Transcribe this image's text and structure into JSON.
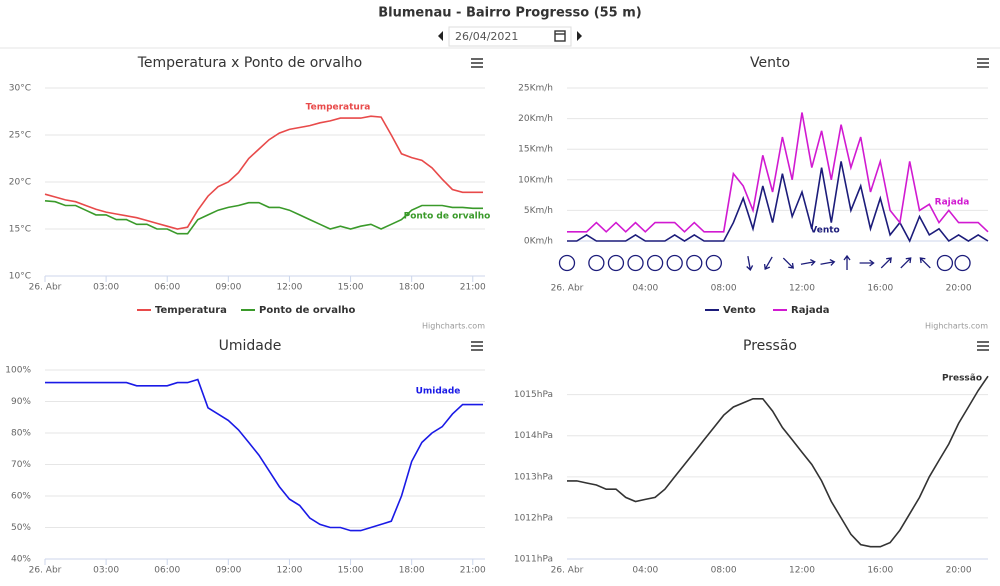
{
  "header": {
    "title": "Blumenau - Bairro Progresso (55 m)",
    "date": "26/04/2021"
  },
  "chart_data": [
    {
      "type": "line",
      "title": "Temperatura x Ponto de orvalho",
      "credits": "Highcharts.com",
      "legend": true,
      "xlim": [
        0,
        21.6
      ],
      "ylim": [
        10,
        30
      ],
      "xticks": [
        {
          "value": 0,
          "label": "26. Abr"
        },
        {
          "value": 3,
          "label": "03:00"
        },
        {
          "value": 6,
          "label": "06:00"
        },
        {
          "value": 9,
          "label": "09:00"
        },
        {
          "value": 12,
          "label": "12:00"
        },
        {
          "value": 15,
          "label": "15:00"
        },
        {
          "value": 18,
          "label": "18:00"
        },
        {
          "value": 21,
          "label": "21:00"
        }
      ],
      "yticks": [
        {
          "value": 10,
          "label": "10°C"
        },
        {
          "value": 15,
          "label": "15°C"
        },
        {
          "value": 20,
          "label": "20°C"
        },
        {
          "value": 25,
          "label": "25°C"
        },
        {
          "value": 30,
          "label": "30°C"
        }
      ],
      "x": [
        0,
        0.5,
        1,
        1.5,
        2,
        2.5,
        3,
        3.5,
        4,
        4.5,
        5,
        5.5,
        6,
        6.5,
        7,
        7.5,
        8,
        8.5,
        9,
        9.5,
        10,
        10.5,
        11,
        11.5,
        12,
        12.5,
        13,
        13.5,
        14,
        14.5,
        15,
        15.5,
        16,
        16.5,
        17,
        17.5,
        18,
        18.5,
        19,
        19.5,
        20,
        20.5,
        21,
        21.5
      ],
      "series": [
        {
          "name": "Temperatura",
          "color": "#e84a4a",
          "values": [
            18.7,
            18.4,
            18.1,
            17.9,
            17.5,
            17.1,
            16.8,
            16.6,
            16.4,
            16.2,
            15.9,
            15.6,
            15.3,
            15.0,
            15.2,
            17,
            18.5,
            19.5,
            20,
            21,
            22.5,
            23.5,
            24.5,
            25.2,
            25.6,
            25.8,
            26,
            26.3,
            26.5,
            26.8,
            26.8,
            26.8,
            27,
            26.9,
            25,
            23,
            22.6,
            22.3,
            21.5,
            20.3,
            19.2,
            18.9,
            18.9,
            18.9
          ]
        },
        {
          "name": "Ponto de orvalho",
          "color": "#3a9a2a",
          "values": [
            18,
            17.9,
            17.5,
            17.5,
            17,
            16.5,
            16.5,
            16,
            16,
            15.5,
            15.5,
            15,
            15,
            14.5,
            14.5,
            16,
            16.5,
            17,
            17.3,
            17.5,
            17.8,
            17.8,
            17.3,
            17.3,
            17,
            16.5,
            16,
            15.5,
            15,
            15.3,
            15,
            15.3,
            15.5,
            15,
            15.5,
            16,
            17,
            17.5,
            17.5,
            17.5,
            17.3,
            17.3,
            17.2,
            17.2
          ]
        }
      ]
    },
    {
      "type": "line",
      "title": "Vento",
      "credits": "Highcharts.com",
      "legend": true,
      "xlim": [
        0,
        21.5
      ],
      "ylim": [
        0,
        25
      ],
      "xticks": [
        {
          "value": 0,
          "label": "26. Abr"
        },
        {
          "value": 4,
          "label": "04:00"
        },
        {
          "value": 8,
          "label": "08:00"
        },
        {
          "value": 12,
          "label": "12:00"
        },
        {
          "value": 16,
          "label": "16:00"
        },
        {
          "value": 20,
          "label": "20:00"
        }
      ],
      "yticks": [
        {
          "value": 0,
          "label": "0Km/h"
        },
        {
          "value": 5,
          "label": "5Km/h"
        },
        {
          "value": 10,
          "label": "10Km/h"
        },
        {
          "value": 15,
          "label": "15Km/h"
        },
        {
          "value": 20,
          "label": "20Km/h"
        },
        {
          "value": 25,
          "label": "25Km/h"
        }
      ],
      "x": [
        0,
        0.5,
        1,
        1.5,
        2,
        2.5,
        3,
        3.5,
        4,
        4.5,
        5,
        5.5,
        6,
        6.5,
        7,
        7.5,
        8,
        8.5,
        9,
        9.5,
        10,
        10.5,
        11,
        11.5,
        12,
        12.5,
        13,
        13.5,
        14,
        14.5,
        15,
        15.5,
        16,
        16.5,
        17,
        17.5,
        18,
        18.5,
        19,
        19.5,
        20,
        20.5,
        21,
        21.5
      ],
      "series": [
        {
          "name": "Vento",
          "color": "#1c1c7a",
          "values": [
            0,
            0,
            1,
            0,
            0,
            0,
            0,
            1,
            0,
            0,
            0,
            1,
            0,
            1,
            0,
            0,
            0,
            3,
            7,
            2,
            9,
            3,
            11,
            4,
            8,
            2,
            12,
            3,
            13,
            5,
            9,
            2,
            7,
            1,
            3,
            0,
            4,
            1,
            2,
            0,
            1,
            0,
            1,
            0
          ]
        },
        {
          "name": "Rajada",
          "color": "#d11ad1",
          "values": [
            1.5,
            1.5,
            1.5,
            3,
            1.5,
            3,
            1.5,
            3,
            1.5,
            3,
            3,
            3,
            1.5,
            3,
            1.5,
            1.5,
            1.5,
            11,
            9,
            5,
            14,
            8,
            17,
            10,
            21,
            12,
            18,
            10,
            19,
            12,
            17,
            8,
            13,
            5,
            3,
            13,
            5,
            6,
            3,
            5,
            3,
            3,
            3,
            1.5
          ]
        }
      ],
      "wind_direction": {
        "x": [
          0,
          1.5,
          2.5,
          3.5,
          4.5,
          5.5,
          6.5,
          7.5,
          9.3,
          10.3,
          11.3,
          12.3,
          13.3,
          14.3,
          15.3,
          16.3,
          17.3,
          18.3,
          19.3,
          20.2
        ],
        "degrees": [
          null,
          null,
          null,
          null,
          null,
          null,
          null,
          null,
          170,
          210,
          135,
          80,
          80,
          0,
          90,
          45,
          45,
          315,
          null,
          null
        ]
      }
    },
    {
      "type": "line",
      "title": "Umidade",
      "legend": false,
      "xlim": [
        0,
        21.6
      ],
      "ylim": [
        40,
        100
      ],
      "xticks": [
        {
          "value": 0,
          "label": "26. Abr"
        },
        {
          "value": 3,
          "label": "03:00"
        },
        {
          "value": 6,
          "label": "06:00"
        },
        {
          "value": 9,
          "label": "09:00"
        },
        {
          "value": 12,
          "label": "12:00"
        },
        {
          "value": 15,
          "label": "15:00"
        },
        {
          "value": 18,
          "label": "18:00"
        },
        {
          "value": 21,
          "label": "21:00"
        }
      ],
      "yticks": [
        {
          "value": 40,
          "label": "40%"
        },
        {
          "value": 50,
          "label": "50%"
        },
        {
          "value": 60,
          "label": "60%"
        },
        {
          "value": 70,
          "label": "70%"
        },
        {
          "value": 80,
          "label": "80%"
        },
        {
          "value": 90,
          "label": "90%"
        },
        {
          "value": 100,
          "label": "100%"
        }
      ],
      "x": [
        0,
        0.5,
        1,
        1.5,
        2,
        2.5,
        3,
        3.5,
        4,
        4.5,
        5,
        5.5,
        6,
        6.5,
        7,
        7.5,
        8,
        8.5,
        9,
        9.5,
        10,
        10.5,
        11,
        11.5,
        12,
        12.5,
        13,
        13.5,
        14,
        14.5,
        15,
        15.5,
        16,
        16.5,
        17,
        17.5,
        18,
        18.5,
        19,
        19.5,
        20,
        20.5,
        21,
        21.5
      ],
      "series": [
        {
          "name": "Umidade",
          "color": "#1a1ae6",
          "values": [
            96,
            96,
            96,
            96,
            96,
            96,
            96,
            96,
            96,
            95,
            95,
            95,
            95,
            96,
            96,
            97,
            88,
            86,
            84,
            81,
            77,
            73,
            68,
            63,
            59,
            57,
            53,
            51,
            50,
            50,
            49,
            49,
            50,
            51,
            52,
            60,
            71,
            77,
            80,
            82,
            86,
            89,
            89,
            89
          ]
        }
      ]
    },
    {
      "type": "line",
      "title": "Pressão",
      "legend": false,
      "xlim": [
        0,
        21.5
      ],
      "ylim": [
        1011,
        1015.6
      ],
      "xticks": [
        {
          "value": 0,
          "label": "26. Abr"
        },
        {
          "value": 4,
          "label": "04:00"
        },
        {
          "value": 8,
          "label": "08:00"
        },
        {
          "value": 12,
          "label": "12:00"
        },
        {
          "value": 16,
          "label": "16:00"
        },
        {
          "value": 20,
          "label": "20:00"
        }
      ],
      "yticks": [
        {
          "value": 1011,
          "label": "1011hPa"
        },
        {
          "value": 1012,
          "label": "1012hPa"
        },
        {
          "value": 1013,
          "label": "1013hPa"
        },
        {
          "value": 1014,
          "label": "1014hPa"
        },
        {
          "value": 1015,
          "label": "1015hPa"
        }
      ],
      "x": [
        0,
        0.5,
        1,
        1.5,
        2,
        2.5,
        3,
        3.5,
        4,
        4.5,
        5,
        5.5,
        6,
        6.5,
        7,
        7.5,
        8,
        8.5,
        9,
        9.5,
        10,
        10.5,
        11,
        11.5,
        12,
        12.5,
        13,
        13.5,
        14,
        14.5,
        15,
        15.5,
        16,
        16.5,
        17,
        17.5,
        18,
        18.5,
        19,
        19.5,
        20,
        20.5,
        21,
        21.5
      ],
      "series": [
        {
          "name": "Pressão",
          "color": "#333333",
          "values": [
            1012.9,
            1012.9,
            1012.85,
            1012.8,
            1012.7,
            1012.7,
            1012.5,
            1012.4,
            1012.45,
            1012.5,
            1012.7,
            1013.0,
            1013.3,
            1013.6,
            1013.9,
            1014.2,
            1014.5,
            1014.7,
            1014.8,
            1014.9,
            1014.9,
            1014.6,
            1014.2,
            1013.9,
            1013.6,
            1013.3,
            1012.9,
            1012.4,
            1012.0,
            1011.6,
            1011.35,
            1011.3,
            1011.3,
            1011.4,
            1011.7,
            1012.1,
            1012.5,
            1013.0,
            1013.4,
            1013.8,
            1014.3,
            1014.7,
            1015.1,
            1015.45
          ]
        }
      ]
    }
  ]
}
